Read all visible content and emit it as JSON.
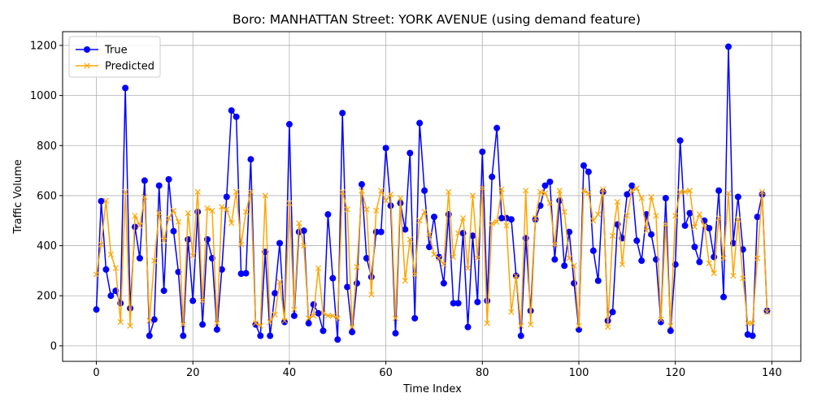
{
  "chart_data": {
    "type": "line",
    "title": "Boro: MANHATTAN Street: YORK AVENUE (using demand feature)",
    "xlabel": "Time Index",
    "ylabel": "Traffic Volume",
    "xlim": [
      -7,
      146
    ],
    "ylim": [
      -62,
      1255
    ],
    "xticks": [
      0,
      20,
      40,
      60,
      80,
      100,
      120,
      140
    ],
    "yticks": [
      0,
      200,
      400,
      600,
      800,
      1000,
      1200
    ],
    "grid": true,
    "legend_position": "top-left",
    "series": [
      {
        "name": "True",
        "color": "#0000ff",
        "marker": "circle",
        "values": [
          145,
          578,
          305,
          200,
          220,
          170,
          1030,
          150,
          475,
          350,
          660,
          40,
          105,
          640,
          220,
          665,
          458,
          295,
          40,
          425,
          180,
          535,
          85,
          425,
          350,
          65,
          305,
          595,
          940,
          915,
          288,
          290,
          745,
          85,
          40,
          375,
          40,
          210,
          410,
          95,
          885,
          120,
          455,
          460,
          90,
          165,
          130,
          60,
          525,
          270,
          25,
          930,
          235,
          55,
          250,
          645,
          350,
          275,
          455,
          455,
          790,
          560,
          50,
          570,
          465,
          770,
          110,
          890,
          620,
          395,
          515,
          355,
          250,
          525,
          170,
          170,
          450,
          75,
          440,
          175,
          775,
          180,
          675,
          870,
          510,
          510,
          505,
          280,
          40,
          430,
          140,
          505,
          560,
          640,
          655,
          345,
          580,
          320,
          455,
          250,
          65,
          720,
          695,
          380,
          260,
          615,
          100,
          135,
          485,
          430,
          605,
          640,
          420,
          340,
          525,
          445,
          345,
          95,
          590,
          60,
          325,
          820,
          480,
          530,
          395,
          335,
          500,
          470,
          355,
          620,
          195,
          1195,
          410,
          595,
          385,
          45,
          40,
          515,
          605,
          140
        ]
      },
      {
        "name": "Predicted",
        "color": "#ffa500",
        "marker": "x",
        "values": [
          285,
          405,
          580,
          365,
          310,
          95,
          615,
          80,
          520,
          480,
          595,
          100,
          340,
          530,
          420,
          510,
          540,
          495,
          85,
          530,
          360,
          615,
          180,
          550,
          540,
          90,
          555,
          545,
          490,
          615,
          405,
          535,
          615,
          90,
          80,
          600,
          95,
          125,
          255,
          100,
          570,
          145,
          490,
          400,
          110,
          120,
          310,
          130,
          120,
          120,
          110,
          615,
          545,
          75,
          315,
          620,
          545,
          205,
          540,
          620,
          580,
          605,
          110,
          590,
          260,
          425,
          285,
          500,
          535,
          445,
          365,
          350,
          325,
          615,
          355,
          450,
          510,
          310,
          600,
          350,
          630,
          90,
          490,
          495,
          625,
          480,
          135,
          280,
          80,
          620,
          85,
          510,
          615,
          610,
          570,
          405,
          620,
          535,
          350,
          320,
          80,
          620,
          610,
          500,
          525,
          625,
          75,
          440,
          575,
          325,
          520,
          620,
          630,
          590,
          460,
          595,
          520,
          105,
          485,
          80,
          520,
          615,
          615,
          620,
          475,
          525,
          480,
          330,
          290,
          510,
          350,
          610,
          280,
          505,
          270,
          90,
          90,
          350,
          615,
          135
        ]
      }
    ]
  }
}
